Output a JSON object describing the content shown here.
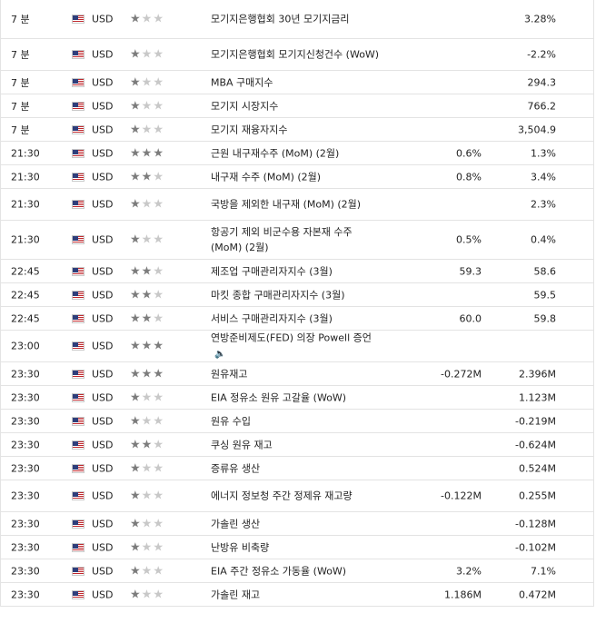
{
  "rows": [
    {
      "time": "7 분",
      "currency": "USD",
      "importance": 1,
      "event": "모기지은행협회 30년 모기지금리",
      "actual": "",
      "forecast": "3.28%"
    },
    {
      "time": "7 분",
      "currency": "USD",
      "importance": 1,
      "event": "모기지은행협회 모기지신청건수 (WoW)",
      "actual": "",
      "forecast": "-2.2%"
    },
    {
      "time": "7 분",
      "currency": "USD",
      "importance": 1,
      "event": "MBA 구매지수",
      "actual": "",
      "forecast": "294.3"
    },
    {
      "time": "7 분",
      "currency": "USD",
      "importance": 1,
      "event": "모기지 시장지수",
      "actual": "",
      "forecast": "766.2"
    },
    {
      "time": "7 분",
      "currency": "USD",
      "importance": 1,
      "event": "모기지 재융자지수",
      "actual": "",
      "forecast": "3,504.9"
    },
    {
      "time": "21:30",
      "currency": "USD",
      "importance": 3,
      "event": "근원 내구재수주 (MoM) (2월)",
      "actual": "0.6%",
      "forecast": "1.3%"
    },
    {
      "time": "21:30",
      "currency": "USD",
      "importance": 2,
      "event": "내구재 수주 (MoM) (2월)",
      "actual": "0.8%",
      "forecast": "3.4%"
    },
    {
      "time": "21:30",
      "currency": "USD",
      "importance": 1,
      "event": "국방을 제외한 내구재 (MoM) (2월)",
      "actual": "",
      "forecast": "2.3%"
    },
    {
      "time": "21:30",
      "currency": "USD",
      "importance": 1,
      "event": "항공기 제외 비군수용 자본재 수주 (MoM) (2월)",
      "actual": "0.5%",
      "forecast": "0.4%"
    },
    {
      "time": "22:45",
      "currency": "USD",
      "importance": 2,
      "event": "제조업 구매관리자지수 (3월)",
      "actual": "59.3",
      "forecast": "58.6"
    },
    {
      "time": "22:45",
      "currency": "USD",
      "importance": 2,
      "event": "마킷 종합 구매관리자지수 (3월)",
      "actual": "",
      "forecast": "59.5"
    },
    {
      "time": "22:45",
      "currency": "USD",
      "importance": 2,
      "event": "서비스 구매관리자지수 (3월)",
      "actual": "60.0",
      "forecast": "59.8"
    },
    {
      "time": "23:00",
      "currency": "USD",
      "importance": 3,
      "event": "연방준비제도(FED) 의장 Powell 증언",
      "actual": "",
      "forecast": "",
      "speech": true
    },
    {
      "time": "23:30",
      "currency": "USD",
      "importance": 3,
      "event": "원유재고",
      "actual": "-0.272M",
      "forecast": "2.396M"
    },
    {
      "time": "23:30",
      "currency": "USD",
      "importance": 1,
      "event": "EIA 정유소 원유 고갈율 (WoW)",
      "actual": "",
      "forecast": "1.123M"
    },
    {
      "time": "23:30",
      "currency": "USD",
      "importance": 1,
      "event": "원유 수입",
      "actual": "",
      "forecast": "-0.219M"
    },
    {
      "time": "23:30",
      "currency": "USD",
      "importance": 2,
      "event": "쿠싱 원유 재고",
      "actual": "",
      "forecast": "-0.624M"
    },
    {
      "time": "23:30",
      "currency": "USD",
      "importance": 1,
      "event": "증류유 생산",
      "actual": "",
      "forecast": "0.524M"
    },
    {
      "time": "23:30",
      "currency": "USD",
      "importance": 1,
      "event": "에너지 정보청 주간 정제유 재고량",
      "actual": "-0.122M",
      "forecast": "0.255M"
    },
    {
      "time": "23:30",
      "currency": "USD",
      "importance": 1,
      "event": "가솔린 생산",
      "actual": "",
      "forecast": "-0.128M"
    },
    {
      "time": "23:30",
      "currency": "USD",
      "importance": 1,
      "event": "난방유 비축량",
      "actual": "",
      "forecast": "-0.102M"
    },
    {
      "time": "23:30",
      "currency": "USD",
      "importance": 1,
      "event": "EIA 주간 정유소 가동율 (WoW)",
      "actual": "3.2%",
      "forecast": "7.1%"
    },
    {
      "time": "23:30",
      "currency": "USD",
      "importance": 1,
      "event": "가솔린 재고",
      "actual": "1.186M",
      "forecast": "0.472M"
    }
  ]
}
